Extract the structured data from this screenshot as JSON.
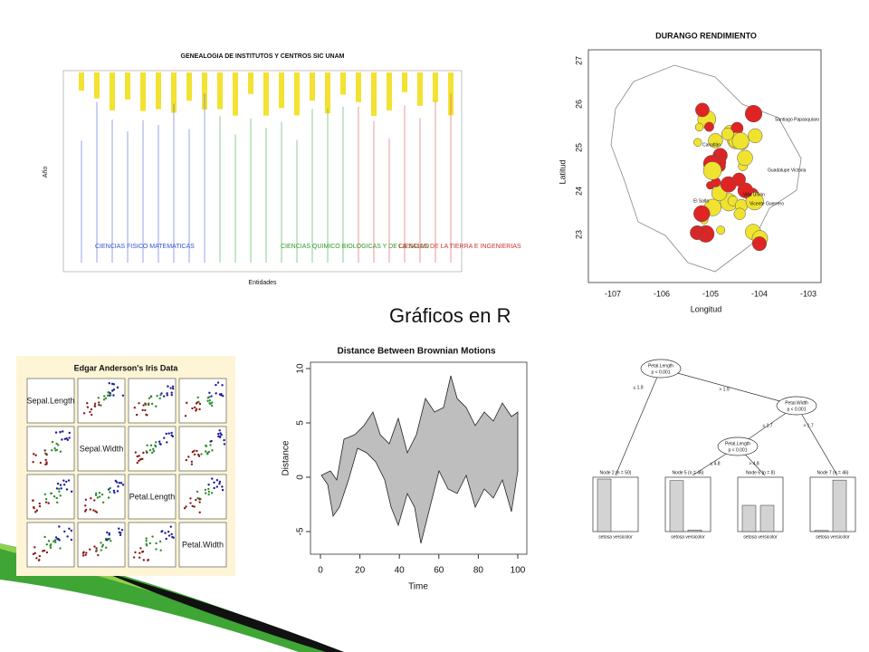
{
  "slide": {
    "title": "Gráficos en R"
  },
  "genealogy": {
    "title": "GENEALOGIA DE INSTITUTOS Y CENTROS SIC UNAM",
    "x_label": "Entidades",
    "y_label": "Año",
    "groups": [
      "CIENCIAS FISICO MATEMATICAS",
      "CIENCIAS QUIMICO BIOLOGICAS Y DE LA SALUD",
      "CIENCIAS DE LA TIERRA E INGENIERIAS"
    ]
  },
  "durango": {
    "title": "DURANGO RENDIMIENTO",
    "x_label": "Longitud",
    "y_label": "Latitud",
    "xticks": [
      "-107",
      "-106",
      "-105",
      "-104",
      "-103"
    ],
    "yticks": [
      "27",
      "26",
      "25",
      "24",
      "23"
    ],
    "places": [
      "Santiago Papasquiaro",
      "Canatlán",
      "Guadalupe Victoria",
      "Villa Unión",
      "Vicente Guerrero",
      "El Salto"
    ]
  },
  "iris": {
    "title": "Edgar Anderson's Iris Data",
    "variables": [
      "Sepal.Length",
      "Sepal.Width",
      "Petal.Length",
      "Petal.Width"
    ]
  },
  "brownian": {
    "title": "Distance Between Brownian Motions",
    "x_label": "Time",
    "y_label": "Distance",
    "xticks": [
      "0",
      "20",
      "40",
      "60",
      "80",
      "100"
    ],
    "yticks": [
      "10",
      "5",
      "0",
      "-5"
    ]
  },
  "tree": {
    "inner": [
      {
        "label": "Petal.Length",
        "p": "p < 0.001"
      },
      {
        "label": "Petal.Width",
        "p": "p < 0.001"
      },
      {
        "label": "Petal.Length",
        "p": "p < 0.001"
      }
    ],
    "splits": [
      "≤ 1.9",
      "> 1.9",
      "≤ 1.7",
      "> 1.7",
      "≤ 4.8",
      "> 4.8"
    ],
    "leaves": [
      "Node 2 (n = 50)",
      "Node 5 (n = 46)",
      "Node 6 (n = 8)",
      "Node 7 (n = 46)"
    ],
    "leaf_axis": "setosa versicolor"
  }
}
